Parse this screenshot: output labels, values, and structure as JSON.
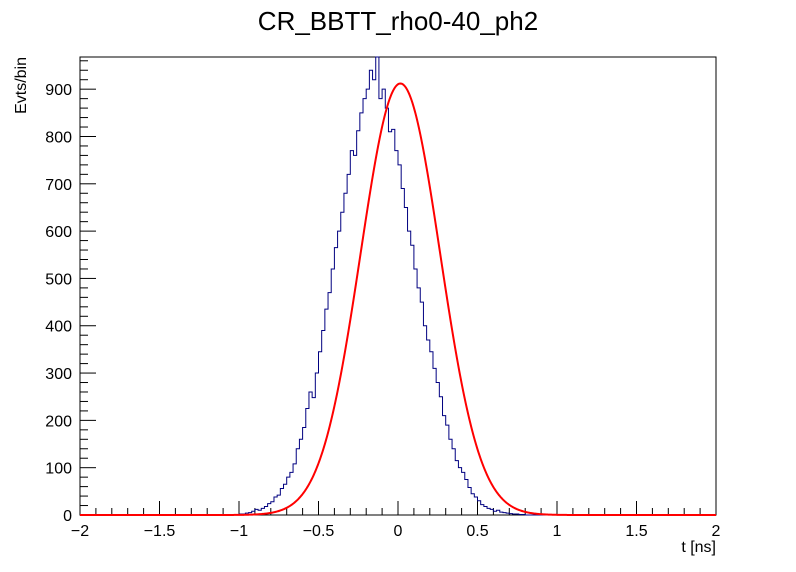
{
  "chart_data": {
    "type": "histogram",
    "title": "CR_BBTT_rho0-40_ph2",
    "xlabel": "t [ns]",
    "ylabel": "Evts/bin",
    "xlim": [
      -2,
      2
    ],
    "ylim": [
      0,
      968
    ],
    "grid": false,
    "legend": "none",
    "x_ticks": [
      "−2",
      "−1.5",
      "−1",
      "−0.5",
      "0",
      "0.5",
      "1",
      "1.5",
      "2"
    ],
    "y_ticks": [
      "0",
      "100",
      "200",
      "300",
      "400",
      "500",
      "600",
      "700",
      "800",
      "900"
    ],
    "bin_width": 0.02,
    "bin_low_edges": [
      -2.0,
      -1.98,
      -1.96,
      -1.94,
      -1.92,
      -1.9,
      -1.88,
      -1.86,
      -1.84,
      -1.82,
      -1.8,
      -1.78,
      -1.76,
      -1.74,
      -1.72,
      -1.7,
      -1.68,
      -1.66,
      -1.64,
      -1.62,
      -1.6,
      -1.58,
      -1.56,
      -1.54,
      -1.52,
      -1.5,
      -1.48,
      -1.46,
      -1.44,
      -1.42,
      -1.4,
      -1.38,
      -1.36,
      -1.34,
      -1.32,
      -1.3,
      -1.28,
      -1.26,
      -1.24,
      -1.22,
      -1.2,
      -1.18,
      -1.16,
      -1.14,
      -1.12,
      -1.1,
      -1.08,
      -1.06,
      -1.04,
      -1.02,
      -1.0,
      -0.98,
      -0.96,
      -0.94,
      -0.92,
      -0.9,
      -0.88,
      -0.86,
      -0.84,
      -0.82,
      -0.8,
      -0.78,
      -0.76,
      -0.74,
      -0.72,
      -0.7,
      -0.68,
      -0.66,
      -0.64,
      -0.62,
      -0.6,
      -0.58,
      -0.56,
      -0.54,
      -0.52,
      -0.5,
      -0.48,
      -0.46,
      -0.44,
      -0.42,
      -0.4,
      -0.38,
      -0.36,
      -0.34,
      -0.32,
      -0.3,
      -0.28,
      -0.26,
      -0.24,
      -0.22,
      -0.2,
      -0.18,
      -0.16,
      -0.14,
      -0.12,
      -0.1,
      -0.08,
      -0.06,
      -0.04,
      -0.02,
      0.0,
      0.02,
      0.04,
      0.06,
      0.08,
      0.1,
      0.12,
      0.14,
      0.16,
      0.18,
      0.2,
      0.22,
      0.24,
      0.26,
      0.28,
      0.3,
      0.32,
      0.34,
      0.36,
      0.38,
      0.4,
      0.42,
      0.44,
      0.46,
      0.48,
      0.5,
      0.52,
      0.54,
      0.56,
      0.58,
      0.6,
      0.62,
      0.64,
      0.66,
      0.68,
      0.7,
      0.72,
      0.74,
      0.76,
      0.78,
      0.8,
      0.82,
      0.84,
      0.86,
      0.88,
      0.9,
      0.92,
      0.94,
      0.96,
      0.98,
      1.0,
      1.02,
      1.04,
      1.06,
      1.08,
      1.1,
      1.12,
      1.14,
      1.16,
      1.18,
      1.2,
      1.22,
      1.24,
      1.26,
      1.28,
      1.3,
      1.32,
      1.34,
      1.36,
      1.38,
      1.4,
      1.42,
      1.44,
      1.46,
      1.48,
      1.5,
      1.52,
      1.54,
      1.56,
      1.58,
      1.6,
      1.62,
      1.64,
      1.66,
      1.68,
      1.7,
      1.72,
      1.74,
      1.76,
      1.78,
      1.8,
      1.82,
      1.84,
      1.86,
      1.88,
      1.9,
      1.92,
      1.94,
      1.96,
      1.98
    ],
    "series": [
      {
        "style": "histogram-step",
        "color": "#000080",
        "values": [
          0,
          0,
          0,
          0,
          0,
          0,
          0,
          0,
          0,
          0,
          0,
          0,
          0,
          0,
          0,
          0,
          0,
          0,
          0,
          0,
          0,
          0,
          0,
          0,
          0,
          0,
          0,
          0,
          0,
          0,
          0,
          0,
          0,
          0,
          0,
          0,
          0,
          0,
          0,
          0,
          0,
          0,
          0,
          0,
          0,
          0,
          0,
          0,
          0,
          1,
          2,
          2,
          4,
          5,
          8,
          12,
          10,
          14,
          18,
          24,
          28,
          38,
          42,
          56,
          65,
          80,
          90,
          108,
          140,
          160,
          185,
          225,
          260,
          248,
          300,
          345,
          390,
          435,
          470,
          520,
          565,
          600,
          640,
          680,
          720,
          770,
          760,
          812,
          850,
          880,
          900,
          940,
          920,
          968,
          880,
          900,
          860,
          810,
          815,
          770,
          740,
          690,
          650,
          600,
          570,
          520,
          480,
          450,
          400,
          370,
          345,
          310,
          280,
          250,
          210,
          190,
          160,
          140,
          115,
          100,
          90,
          75,
          58,
          45,
          38,
          30,
          22,
          18,
          14,
          12,
          8,
          10,
          6,
          5,
          4,
          3,
          2,
          2,
          1,
          1,
          0,
          0,
          0,
          0,
          0,
          0,
          0,
          0,
          0,
          0,
          0,
          0,
          0,
          0,
          0,
          0,
          0,
          0,
          0,
          0,
          0,
          0,
          0,
          0,
          0,
          0,
          0,
          0,
          0,
          0,
          0,
          0,
          0,
          0,
          0,
          0,
          0,
          0,
          0,
          0,
          0,
          0,
          0,
          0,
          0,
          0,
          0,
          0,
          0,
          0,
          0,
          0,
          0,
          0,
          0,
          0,
          0,
          0,
          0,
          0,
          0,
          0,
          0,
          0,
          0,
          0,
          0,
          0,
          0,
          0,
          0,
          0,
          0
        ]
      },
      {
        "style": "fit-curve",
        "color": "#ff0000",
        "function": "gaussian",
        "amplitude": 912,
        "mean": 0.015,
        "sigma": 0.25
      }
    ]
  }
}
